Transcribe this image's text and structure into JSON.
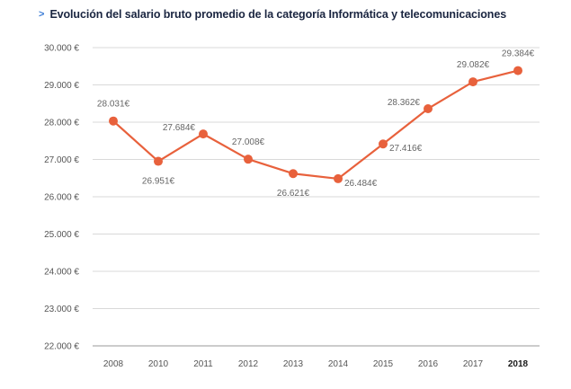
{
  "header": {
    "marker": ">",
    "title": "Evolución del salario bruto promedio de la categoría Informática y telecomunicaciones"
  },
  "colors": {
    "line": "#e8613c",
    "title": "#1a2540",
    "marker": "#3a7bd5",
    "grid": "#d9d9d9"
  },
  "chart_data": {
    "type": "line",
    "title": "Evolución del salario bruto promedio de la categoría Informática y telecomunicaciones",
    "xlabel": "",
    "ylabel": "",
    "x": [
      "2008",
      "2010",
      "2011",
      "2012",
      "2013",
      "2014",
      "2015",
      "2016",
      "2017",
      "2018"
    ],
    "bold_x": [
      "2018"
    ],
    "series": [
      {
        "values": [
          28031,
          26951,
          27684,
          27008,
          26621,
          26484,
          27416,
          28362,
          29082,
          29384
        ],
        "labels": [
          "28.031€",
          "26.951€",
          "27.684€",
          "27.008€",
          "26.621€",
          "26.484€",
          "27.416€",
          "28.362€",
          "29.082€",
          "29.384€"
        ],
        "label_positions": [
          "above",
          "below",
          "left",
          "above",
          "below",
          "right",
          "right",
          "left",
          "above",
          "above"
        ]
      }
    ],
    "ylim": [
      22000,
      30000
    ],
    "yticks": [
      22000,
      23000,
      24000,
      25000,
      26000,
      27000,
      28000,
      29000,
      30000
    ],
    "ytick_labels": [
      "22.000 €",
      "23.000 €",
      "24.000 €",
      "25.000 €",
      "26.000 €",
      "27.000 €",
      "28.000 €",
      "29.000 €",
      "30.000 €"
    ],
    "grid": true,
    "legend": "none"
  }
}
